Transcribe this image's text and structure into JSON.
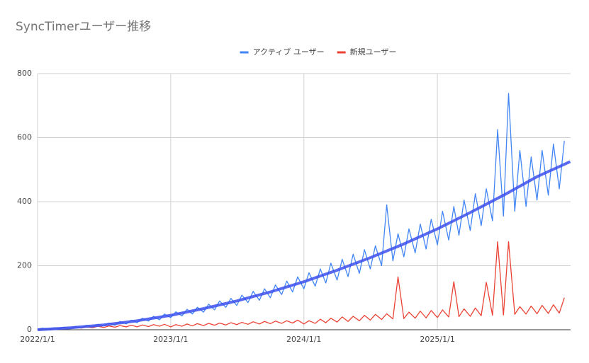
{
  "chart_data": {
    "type": "line",
    "title": "SyncTimerユーザー推移",
    "legend": "top",
    "grid": true,
    "xlim": [
      "2022/1/1",
      "2026/1/1"
    ],
    "xticks": [
      "2022/1/1",
      "2023/1/1",
      "2024/1/1",
      "2025/1/1"
    ],
    "ylim": [
      0,
      800
    ],
    "yticks": [
      0,
      200,
      400,
      600,
      800
    ],
    "x": [
      "2022/1/1",
      "2022/1/15",
      "2022/2/1",
      "2022/2/15",
      "2022/3/1",
      "2022/3/15",
      "2022/4/1",
      "2022/4/15",
      "2022/5/1",
      "2022/5/15",
      "2022/6/1",
      "2022/6/15",
      "2022/7/1",
      "2022/7/15",
      "2022/8/1",
      "2022/8/15",
      "2022/9/1",
      "2022/9/15",
      "2022/10/1",
      "2022/10/15",
      "2022/11/1",
      "2022/11/15",
      "2022/12/1",
      "2022/12/15",
      "2023/1/1",
      "2023/1/15",
      "2023/2/1",
      "2023/2/15",
      "2023/3/1",
      "2023/3/15",
      "2023/4/1",
      "2023/4/15",
      "2023/5/1",
      "2023/5/15",
      "2023/6/1",
      "2023/6/15",
      "2023/7/1",
      "2023/7/15",
      "2023/8/1",
      "2023/8/15",
      "2023/9/1",
      "2023/9/15",
      "2023/10/1",
      "2023/10/15",
      "2023/11/1",
      "2023/11/15",
      "2023/12/1",
      "2023/12/15",
      "2024/1/1",
      "2024/1/15",
      "2024/2/1",
      "2024/2/15",
      "2024/3/1",
      "2024/3/15",
      "2024/4/1",
      "2024/4/15",
      "2024/5/1",
      "2024/5/15",
      "2024/6/1",
      "2024/6/15",
      "2024/7/1",
      "2024/7/15",
      "2024/8/1",
      "2024/8/15",
      "2024/9/1",
      "2024/9/15",
      "2024/10/1",
      "2024/10/15",
      "2024/11/1",
      "2024/11/15",
      "2024/12/1",
      "2024/12/15",
      "2025/1/1",
      "2025/1/15",
      "2025/2/1",
      "2025/2/15",
      "2025/3/1",
      "2025/3/15",
      "2025/4/1",
      "2025/4/15",
      "2025/5/1",
      "2025/5/15",
      "2025/6/1",
      "2025/6/15",
      "2025/7/1",
      "2025/7/15",
      "2025/8/1",
      "2025/8/15",
      "2025/9/1",
      "2025/9/15",
      "2025/10/1",
      "2025/10/15",
      "2025/11/1",
      "2025/11/15",
      "2025/12/1",
      "2025/12/15"
    ],
    "series": [
      {
        "name": "アクティブ ユーザー",
        "color": "#4285f4",
        "values": [
          2,
          5,
          1,
          6,
          2,
          8,
          4,
          10,
          6,
          14,
          8,
          17,
          12,
          21,
          14,
          26,
          18,
          30,
          22,
          36,
          27,
          42,
          31,
          49,
          38,
          56,
          43,
          64,
          49,
          70,
          55,
          80,
          62,
          90,
          70,
          98,
          76,
          108,
          85,
          120,
          92,
          128,
          100,
          140,
          110,
          152,
          118,
          165,
          128,
          178,
          136,
          190,
          146,
          208,
          155,
          220,
          166,
          236,
          176,
          250,
          190,
          262,
          200,
          390,
          215,
          300,
          228,
          315,
          240,
          330,
          252,
          345,
          265,
          370,
          280,
          385,
          295,
          405,
          310,
          425,
          325,
          440,
          340,
          625,
          355,
          738,
          370,
          560,
          385,
          540,
          405,
          560,
          420,
          580,
          440,
          590
        ]
      },
      {
        "name": "新規ユーザー",
        "color": "#ea4335",
        "values": [
          1,
          4,
          2,
          5,
          3,
          6,
          4,
          8,
          5,
          9,
          6,
          11,
          7,
          12,
          8,
          13,
          9,
          14,
          9,
          15,
          10,
          16,
          11,
          17,
          9,
          16,
          11,
          18,
          12,
          19,
          13,
          20,
          14,
          21,
          15,
          22,
          16,
          23,
          17,
          25,
          18,
          26,
          19,
          27,
          20,
          28,
          21,
          30,
          18,
          28,
          20,
          33,
          22,
          36,
          24,
          40,
          26,
          42,
          28,
          45,
          30,
          48,
          32,
          50,
          34,
          165,
          35,
          55,
          36,
          58,
          37,
          60,
          38,
          62,
          40,
          150,
          41,
          65,
          42,
          68,
          44,
          148,
          45,
          275,
          46,
          275,
          48,
          72,
          49,
          74,
          50,
          76,
          51,
          78,
          52,
          100
        ]
      }
    ],
    "trendline": {
      "color": "#3c50ef",
      "x": [
        "2022/1/1",
        "2022/4/1",
        "2022/7/1",
        "2022/10/1",
        "2023/1/1",
        "2023/4/1",
        "2023/7/1",
        "2023/10/1",
        "2024/1/1",
        "2024/4/1",
        "2024/7/1",
        "2024/10/1",
        "2025/1/1",
        "2025/4/1",
        "2025/7/1",
        "2025/10/1",
        "2025/12/31"
      ],
      "values": [
        0,
        6,
        15,
        28,
        45,
        66,
        90,
        118,
        150,
        186,
        225,
        268,
        315,
        366,
        420,
        478,
        525
      ]
    }
  }
}
